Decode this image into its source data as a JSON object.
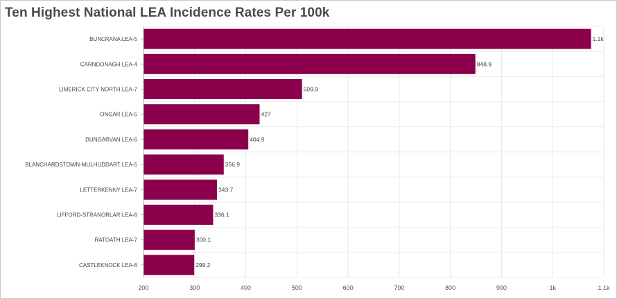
{
  "title": "Ten Highest National LEA Incidence Rates Per 100k",
  "chart_data": {
    "type": "bar",
    "orientation": "horizontal",
    "title": "Ten Highest National LEA Incidence Rates Per 100k",
    "xlabel": "",
    "ylabel": "",
    "categories": [
      "BUNCRANA LEA-5",
      "CARNDONAGH LEA-4",
      "LIMERICK CITY NORTH LEA-7",
      "ONGAR LEA-5",
      "DUNGARVAN LEA-6",
      "BLANCHARDSTOWN-MULHUDDART LEA-5",
      "LETTERKENNY LEA-7",
      "LIFFORD-STRANORLAR LEA-6",
      "RATOATH LEA-7",
      "CASTLEKNOCK LEA-6"
    ],
    "values": [
      1075,
      848.9,
      509.9,
      427,
      404.9,
      356.9,
      343.7,
      336.1,
      300.1,
      299.2
    ],
    "data_labels": [
      "1.1k",
      "848.9",
      "509.9",
      "427",
      "404.9",
      "356.9",
      "343.7",
      "336.1",
      "300.1",
      "299.2"
    ],
    "xlim": [
      200,
      1100
    ],
    "x_ticks": [
      200,
      300,
      400,
      500,
      600,
      700,
      800,
      900,
      1000,
      1100
    ],
    "x_tick_labels": [
      "200",
      "300",
      "400",
      "500",
      "600",
      "700",
      "800",
      "900",
      "1k",
      "1.1k"
    ],
    "bar_color": "#8b004b",
    "grid": true,
    "legend": "none"
  }
}
